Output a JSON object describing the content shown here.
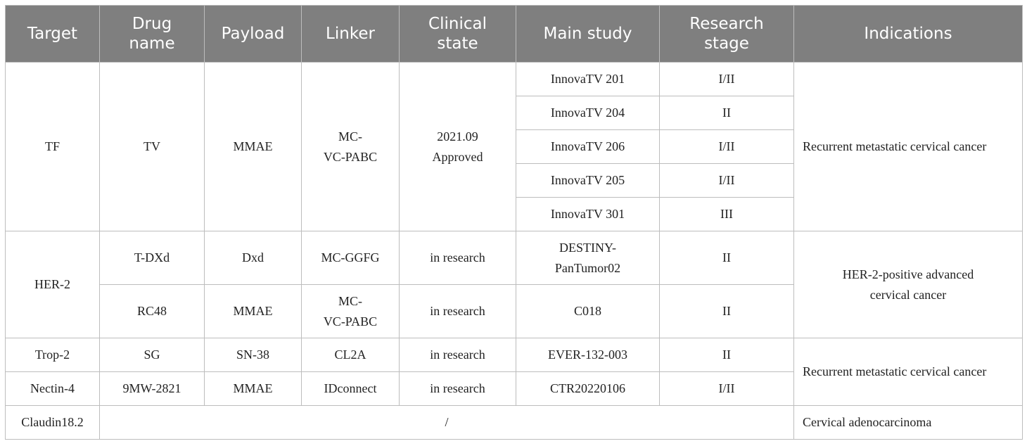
{
  "headers": {
    "target": [
      "Target"
    ],
    "drug_name": [
      "Drug",
      "name"
    ],
    "payload": [
      "Payload"
    ],
    "linker": [
      "Linker"
    ],
    "clinical_state": [
      "Clinical",
      "state"
    ],
    "main_study": [
      "Main study"
    ],
    "research_stage": [
      "Research",
      "stage"
    ],
    "indications": [
      "Indications"
    ]
  },
  "tf": {
    "target": "TF",
    "drug": "TV",
    "payload": "MMAE",
    "linker": [
      "MC-",
      "VC-PABC"
    ],
    "clinical_state": [
      "2021.09",
      "Approved"
    ],
    "indication": "Recurrent metastatic cervical cancer",
    "studies": [
      {
        "name": "InnovaTV 201",
        "stage": "I/II"
      },
      {
        "name": "InnovaTV 204",
        "stage": "II"
      },
      {
        "name": "InnovaTV 206",
        "stage": "I/II"
      },
      {
        "name": "InnovaTV 205",
        "stage": "I/II"
      },
      {
        "name": "InnovaTV 301",
        "stage": "III"
      }
    ]
  },
  "her2": {
    "target": "HER-2",
    "indication": [
      "HER-2-positive advanced",
      "cervical cancer"
    ],
    "rows": [
      {
        "drug": "T-DXd",
        "payload": "Dxd",
        "linker": [
          "MC-GGFG"
        ],
        "clinical_state": "in research",
        "study": [
          "DESTINY-",
          "PanTumor02"
        ],
        "stage": "II"
      },
      {
        "drug": "RC48",
        "payload": "MMAE",
        "linker": [
          "MC-",
          "VC-PABC"
        ],
        "clinical_state": "in research",
        "study": [
          "C018"
        ],
        "stage": "II"
      }
    ]
  },
  "group3": {
    "indication": "Recurrent metastatic cervical cancer",
    "rows": [
      {
        "target": "Trop-2",
        "drug": "SG",
        "payload": "SN-38",
        "linker": "CL2A",
        "clinical_state": "in research",
        "study": "EVER-132-003",
        "stage": "II"
      },
      {
        "target": "Nectin-4",
        "drug": "9MW-2821",
        "payload": "MMAE",
        "linker": "IDconnect",
        "clinical_state": "in research",
        "study": "CTR20220106",
        "stage": "I/II"
      }
    ]
  },
  "claudin": {
    "target": "Claudin18.2",
    "merged": "/",
    "indication": "Cervical adenocarcinoma"
  }
}
